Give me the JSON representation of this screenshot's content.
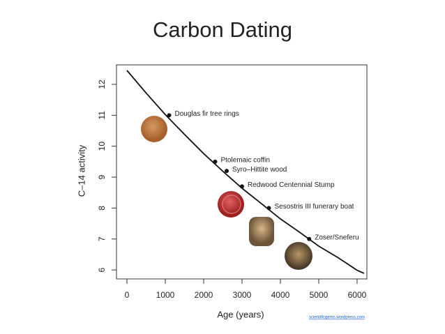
{
  "chart_data": {
    "type": "scatter",
    "title": "Carbon Dating",
    "xlabel": "Age (years)",
    "ylabel": "C–14 activity",
    "credit": "scientificgems.wordpress.com",
    "point_labels": [
      "Douglas fir tree rings",
      "Ptolemaic coffin",
      "Syro–Hittite wood",
      "Redwood Centennial Stump",
      "Sesostris III funerary boat",
      "Zoser/Sneferu"
    ],
    "x": [
      1100,
      2300,
      2600,
      3000,
      3700,
      4750
    ],
    "values": [
      11.0,
      9.5,
      9.2,
      8.7,
      8.0,
      7.0
    ],
    "color": "#111111",
    "curve": {
      "x": [
        0,
        500,
        1000,
        1500,
        2000,
        2500,
        3000,
        3500,
        4000,
        4500,
        5000,
        5500,
        6000,
        6180
      ],
      "values": [
        12.45,
        11.72,
        11.02,
        10.38,
        9.76,
        9.19,
        8.64,
        8.15,
        7.65,
        7.22,
        6.77,
        6.4,
        5.99,
        5.89
      ]
    },
    "xlim": [
      -273,
      6255
    ],
    "ylim": [
      5.71,
      12.63
    ],
    "xticks": [
      0,
      1000,
      2000,
      3000,
      4000,
      5000,
      6000
    ],
    "yticks": [
      6,
      7,
      8,
      9,
      10,
      11,
      12
    ]
  }
}
